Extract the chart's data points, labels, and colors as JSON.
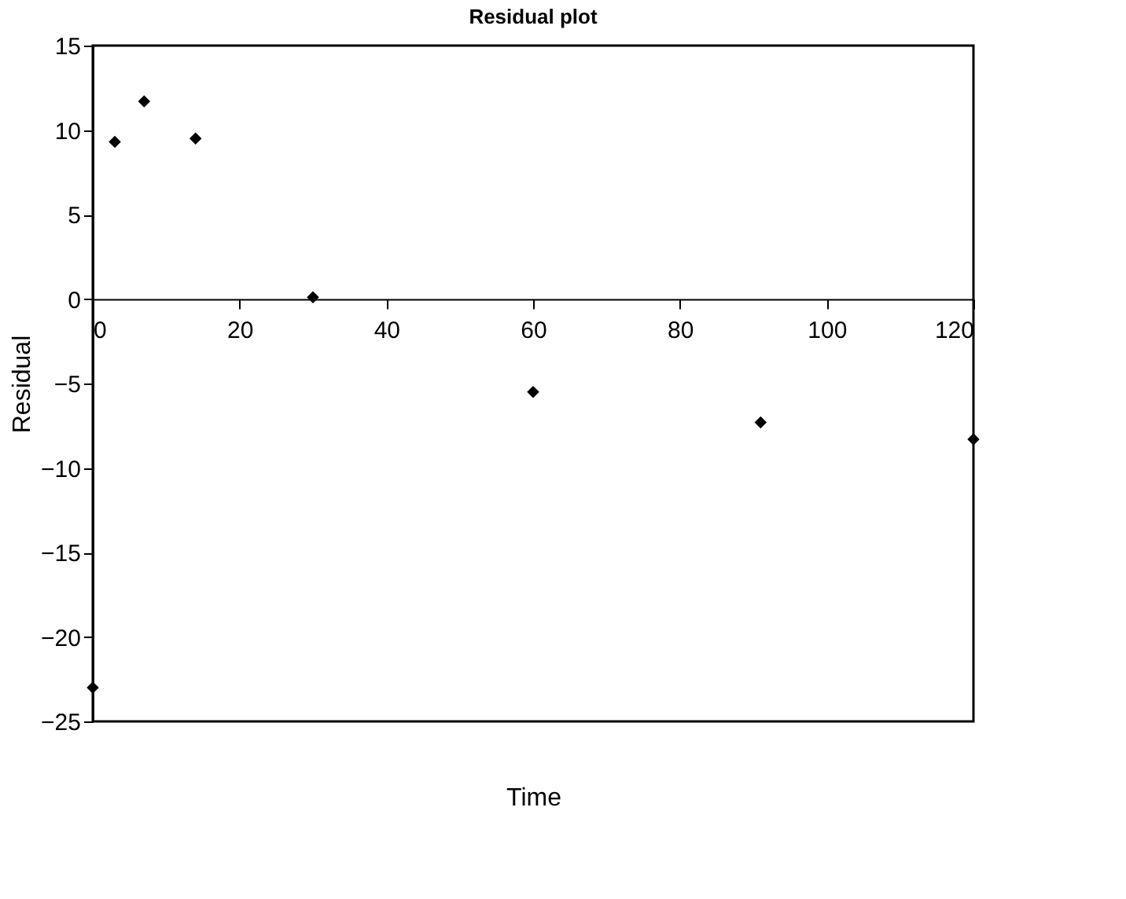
{
  "chart_data": {
    "type": "scatter",
    "title": "Residual plot",
    "xlabel": "Time",
    "ylabel": "Residual",
    "x": [
      0,
      3,
      7,
      14,
      30,
      60,
      91,
      120
    ],
    "series": [
      {
        "color": "#000000",
        "values": [
          -23,
          9.3,
          11.7,
          9.5,
          0.1,
          -5.5,
          -7.3,
          -8.3
        ]
      }
    ],
    "xlim": [
      0,
      120
    ],
    "xticks": [
      0,
      20,
      40,
      60,
      80,
      100,
      120
    ],
    "ylim": [
      -25,
      15
    ],
    "yticks": [
      -25,
      -20,
      -15,
      -10,
      -5,
      0,
      5,
      10,
      15
    ],
    "marker": "diamond",
    "grid": false
  }
}
